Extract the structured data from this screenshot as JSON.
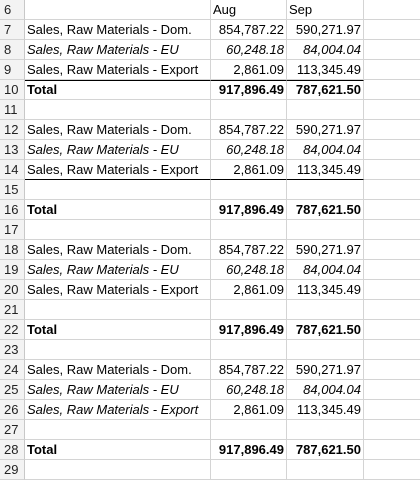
{
  "columns": {
    "b_header": "Aug",
    "c_header": "Sep"
  },
  "rows": [
    {
      "n": "6",
      "label": "",
      "aug": "",
      "sep": "",
      "style": "head"
    },
    {
      "n": "7",
      "label": "Sales, Raw Materials - Dom.",
      "aug": "854,787.22",
      "sep": "590,271.97",
      "style": "normal"
    },
    {
      "n": "8",
      "label": "Sales, Raw Materials - EU",
      "aug": "60,248.18",
      "sep": "84,004.04",
      "style": "italic"
    },
    {
      "n": "9",
      "label": "Sales, Raw Materials - Export",
      "aug": "2,861.09",
      "sep": "113,345.49",
      "style": "normal"
    },
    {
      "n": "10",
      "label": "Total",
      "aug": "917,896.49",
      "sep": "787,621.50",
      "style": "total"
    },
    {
      "n": "11",
      "label": "",
      "aug": "",
      "sep": "",
      "style": "blank"
    },
    {
      "n": "12",
      "label": "Sales, Raw Materials - Dom.",
      "aug": "854,787.22",
      "sep": "590,271.97",
      "style": "normal"
    },
    {
      "n": "13",
      "label": "Sales, Raw Materials - EU",
      "aug": "60,248.18",
      "sep": "84,004.04",
      "style": "italic"
    },
    {
      "n": "14",
      "label": "Sales, Raw Materials - Export",
      "aug": "2,861.09",
      "sep": "113,345.49",
      "style": "normal-underline"
    },
    {
      "n": "15",
      "label": "",
      "aug": "",
      "sep": "",
      "style": "blank"
    },
    {
      "n": "16",
      "label": "Total",
      "aug": "917,896.49",
      "sep": "787,621.50",
      "style": "total-plain"
    },
    {
      "n": "17",
      "label": "",
      "aug": "",
      "sep": "",
      "style": "blank"
    },
    {
      "n": "18",
      "label": "Sales, Raw Materials - Dom.",
      "aug": "854,787.22",
      "sep": "590,271.97",
      "style": "normal"
    },
    {
      "n": "19",
      "label": "Sales, Raw Materials - EU",
      "aug": "60,248.18",
      "sep": "84,004.04",
      "style": "italic"
    },
    {
      "n": "20",
      "label": "Sales, Raw Materials - Export",
      "aug": "2,861.09",
      "sep": "113,345.49",
      "style": "normal"
    },
    {
      "n": "21",
      "label": "",
      "aug": "",
      "sep": "",
      "style": "blank"
    },
    {
      "n": "22",
      "label": "Total",
      "aug": "917,896.49",
      "sep": "787,621.50",
      "style": "total-plain"
    },
    {
      "n": "23",
      "label": "",
      "aug": "",
      "sep": "",
      "style": "blank"
    },
    {
      "n": "24",
      "label": "Sales, Raw Materials - Dom.",
      "aug": "854,787.22",
      "sep": "590,271.97",
      "style": "normal"
    },
    {
      "n": "25",
      "label": "Sales, Raw Materials - EU",
      "aug": "60,248.18",
      "sep": "84,004.04",
      "style": "italic"
    },
    {
      "n": "26",
      "label": "Sales, Raw Materials - Export",
      "aug": "2,861.09",
      "sep": "113,345.49",
      "style": "italic-label"
    },
    {
      "n": "27",
      "label": "",
      "aug": "",
      "sep": "",
      "style": "blank"
    },
    {
      "n": "28",
      "label": "Total",
      "aug": "917,896.49",
      "sep": "787,621.50",
      "style": "total-plain"
    },
    {
      "n": "29",
      "label": "",
      "aug": "",
      "sep": "",
      "style": "blank"
    }
  ]
}
